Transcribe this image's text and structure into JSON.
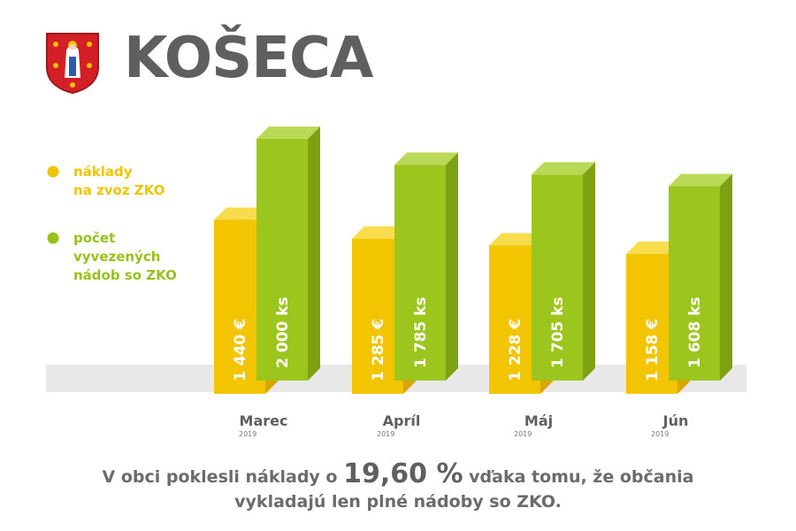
{
  "header": {
    "title": "KOŠECA",
    "emblem": "coat-of-arms-icon"
  },
  "colors": {
    "cost": "#f1c400",
    "count": "#98c11b",
    "title_gray": "#5f5f5f",
    "floor": "#e8e8e8"
  },
  "chart_data": {
    "type": "bar",
    "categories": [
      "Marec",
      "Apríl",
      "Máj",
      "Jún"
    ],
    "category_sublabels": [
      "2019",
      "2019",
      "2019",
      "2019"
    ],
    "series": [
      {
        "name": "náklady na zvoz ZKO",
        "legend_lines": [
          "náklady",
          "na zvoz ZKO"
        ],
        "values": [
          1440,
          1285,
          1228,
          1158
        ],
        "labels": [
          "1 440 €",
          "1 285 €",
          "1 228 €",
          "1 158 €"
        ]
      },
      {
        "name": "počet vyvezených nádob so ZKO",
        "legend_lines": [
          "počet",
          "vyvezených",
          "nádob so ZKO"
        ],
        "values": [
          2000,
          1785,
          1705,
          1608
        ],
        "labels": [
          "2 000 ks",
          "1 785 ks",
          "1 705 ks",
          "1 608 ks"
        ]
      }
    ],
    "legend_position": "left"
  },
  "footer": {
    "line1_pre": "V obci poklesli náklady o ",
    "highlight": "19,60 %",
    "line1_post": " vďaka tomu, že občania",
    "line2": "vykladajú len plné nádoby so ZKO."
  }
}
